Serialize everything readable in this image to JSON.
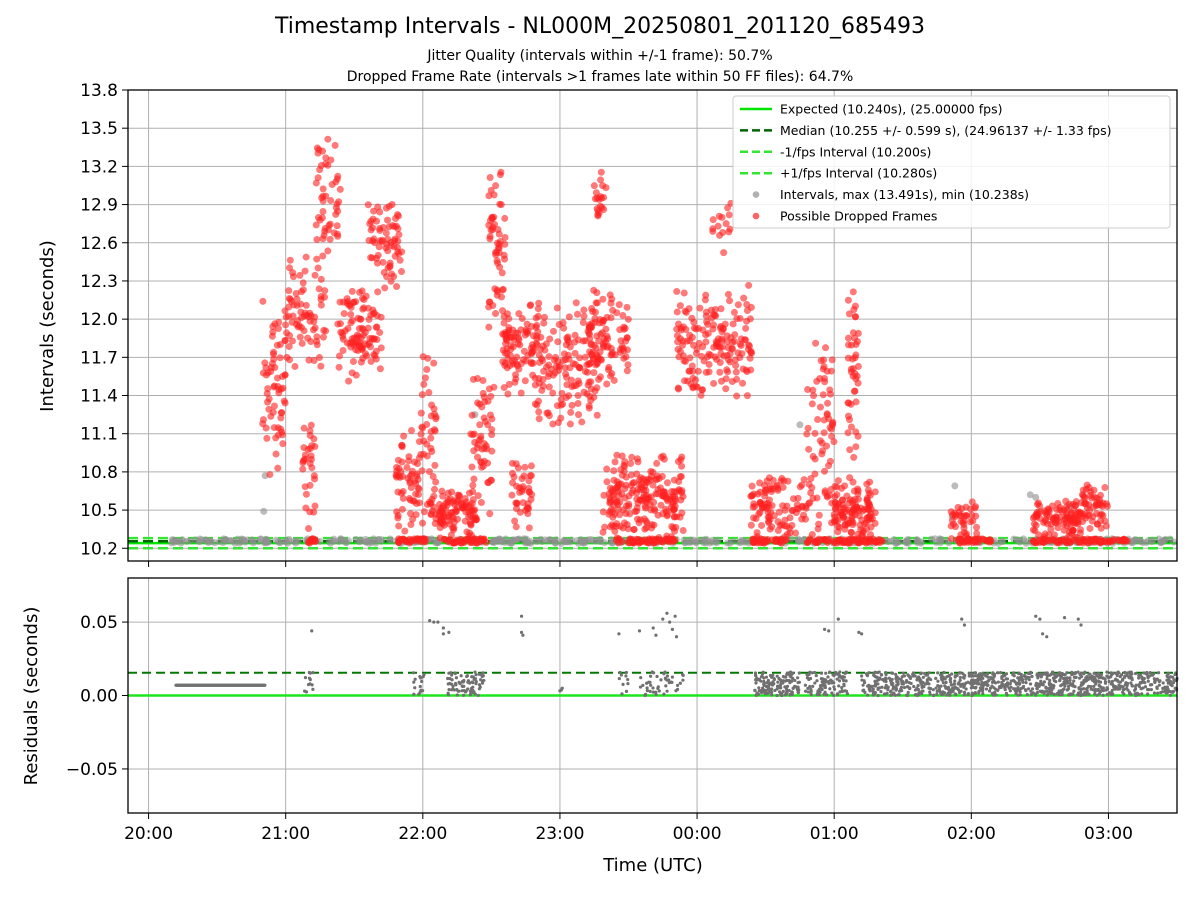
{
  "chart_data": [
    {
      "type": "scatter",
      "title": "Timestamp Intervals - NL000M_20250801_201120_685493",
      "subtitle_lines": [
        "Jitter Quality (intervals within +/-1 frame): 50.7%",
        "Dropped Frame Rate (intervals >1 frames late within 50 FF files): 64.7%"
      ],
      "xlabel": "",
      "ylabel": "Intervals (seconds)",
      "xlim_hours": [
        19.85,
        27.5
      ],
      "ylim": [
        10.1,
        13.8
      ],
      "yticks": [
        10.2,
        10.5,
        10.8,
        11.1,
        11.4,
        11.7,
        12.0,
        12.3,
        12.6,
        12.9,
        13.2,
        13.5,
        13.8
      ],
      "ytick_labels": [
        "10.2",
        "10.5",
        "10.8",
        "11.1",
        "11.4",
        "11.7",
        "12.0",
        "12.3",
        "12.6",
        "12.9",
        "13.2",
        "13.5",
        "13.8"
      ],
      "grid": true,
      "legend_position": "top-right",
      "reference_lines": {
        "expected": 10.24,
        "median": 10.255,
        "minus_interval": 10.2,
        "plus_interval": 10.28
      },
      "legend": [
        {
          "label": "Expected (10.240s), (25.00000 fps)",
          "style": "solid",
          "color": "#00e600"
        },
        {
          "label": "Median (10.255 +/- 0.599 s), (24.96137 +/- 1.33 fps)",
          "style": "dashed",
          "color": "#006400"
        },
        {
          "label": "-1/fps Interval (10.200s)",
          "style": "dashed",
          "color": "#32e632"
        },
        {
          "label": "+1/fps Interval (10.280s)",
          "style": "dashed",
          "color": "#32e632"
        },
        {
          "label": "Intervals, max (13.491s), min (10.238s)",
          "style": "marker",
          "color": "#909090"
        },
        {
          "label": "Possible Dropped Frames",
          "style": "marker",
          "color": "#ff2020"
        }
      ],
      "colors": {
        "expected": "#00e600",
        "median": "#006400",
        "interval": "#32e632",
        "normal_points": "#909090",
        "dropped_points": "#ff2020"
      },
      "dropped_clusters": [
        {
          "start": 20.83,
          "end": 21.0,
          "low": 10.75,
          "high": 12.2,
          "n": 65
        },
        {
          "start": 21.0,
          "end": 21.3,
          "low": 11.5,
          "high": 12.6,
          "n": 75
        },
        {
          "start": 21.12,
          "end": 21.22,
          "low": 10.25,
          "high": 11.3,
          "n": 30
        },
        {
          "start": 21.22,
          "end": 21.4,
          "low": 12.4,
          "high": 13.45,
          "n": 50
        },
        {
          "start": 21.38,
          "end": 21.7,
          "low": 11.5,
          "high": 12.3,
          "n": 100
        },
        {
          "start": 21.6,
          "end": 21.85,
          "low": 12.2,
          "high": 12.95,
          "n": 70
        },
        {
          "start": 21.8,
          "end": 21.98,
          "low": 10.25,
          "high": 11.2,
          "n": 60
        },
        {
          "start": 21.98,
          "end": 22.1,
          "low": 10.3,
          "high": 11.8,
          "n": 40
        },
        {
          "start": 22.05,
          "end": 22.4,
          "low": 10.25,
          "high": 10.7,
          "n": 110
        },
        {
          "start": 22.35,
          "end": 22.52,
          "low": 10.25,
          "high": 11.7,
          "n": 55
        },
        {
          "start": 22.48,
          "end": 22.6,
          "low": 11.8,
          "high": 13.3,
          "n": 55
        },
        {
          "start": 22.58,
          "end": 22.85,
          "low": 11.35,
          "high": 12.2,
          "n": 90
        },
        {
          "start": 22.65,
          "end": 22.8,
          "low": 10.25,
          "high": 11.0,
          "n": 40
        },
        {
          "start": 22.8,
          "end": 23.3,
          "low": 11.1,
          "high": 12.2,
          "n": 160
        },
        {
          "start": 23.2,
          "end": 23.5,
          "low": 11.4,
          "high": 12.3,
          "n": 80
        },
        {
          "start": 23.25,
          "end": 23.35,
          "low": 12.7,
          "high": 13.2,
          "n": 20
        },
        {
          "start": 23.3,
          "end": 23.9,
          "low": 10.25,
          "high": 10.95,
          "n": 220
        },
        {
          "start": 23.85,
          "end": 24.4,
          "low": 11.35,
          "high": 12.3,
          "n": 170
        },
        {
          "start": 24.1,
          "end": 24.25,
          "low": 12.5,
          "high": 12.95,
          "n": 15
        },
        {
          "start": 24.38,
          "end": 24.8,
          "low": 10.25,
          "high": 10.8,
          "n": 100
        },
        {
          "start": 24.8,
          "end": 25.0,
          "low": 10.25,
          "high": 11.9,
          "n": 70
        },
        {
          "start": 25.0,
          "end": 25.3,
          "low": 10.25,
          "high": 10.75,
          "n": 120
        },
        {
          "start": 25.1,
          "end": 25.18,
          "low": 10.6,
          "high": 12.4,
          "n": 45
        },
        {
          "start": 25.85,
          "end": 26.05,
          "low": 10.25,
          "high": 10.6,
          "n": 40
        },
        {
          "start": 26.45,
          "end": 26.8,
          "low": 10.25,
          "high": 10.6,
          "n": 110
        },
        {
          "start": 26.8,
          "end": 27.0,
          "low": 10.25,
          "high": 10.75,
          "n": 55
        }
      ],
      "dropped_baseline_segments": [
        {
          "start": 21.13,
          "end": 21.22,
          "n": 10
        },
        {
          "start": 21.82,
          "end": 22.02,
          "n": 30
        },
        {
          "start": 22.15,
          "end": 22.48,
          "n": 40
        },
        {
          "start": 23.4,
          "end": 23.85,
          "n": 60
        },
        {
          "start": 24.4,
          "end": 24.65,
          "n": 40
        },
        {
          "start": 24.8,
          "end": 25.35,
          "n": 70
        },
        {
          "start": 25.9,
          "end": 26.15,
          "n": 30
        },
        {
          "start": 26.45,
          "end": 27.15,
          "n": 80
        }
      ],
      "normal_points": [
        [
          20.2,
          10.26
        ],
        [
          20.3,
          10.26
        ],
        [
          20.45,
          10.26
        ],
        [
          20.6,
          10.26
        ],
        [
          20.7,
          10.26
        ],
        [
          20.85,
          10.77
        ],
        [
          20.84,
          10.49
        ],
        [
          22.38,
          11.25
        ],
        [
          24.75,
          11.17
        ],
        [
          25.88,
          10.69
        ],
        [
          25.86,
          10.45
        ],
        [
          26.43,
          10.62
        ],
        [
          26.47,
          10.6
        ],
        [
          26.72,
          10.53
        ]
      ],
      "normal_band": {
        "start": 20.15,
        "end": 27.5,
        "low": 10.238,
        "high": 10.275,
        "n": 500
      }
    },
    {
      "type": "scatter",
      "xlabel": "Time (UTC)",
      "ylabel": "Residuals (seconds)",
      "xlim_hours": [
        19.85,
        27.5
      ],
      "ylim": [
        -0.08,
        0.08
      ],
      "yticks": [
        -0.05,
        0.0,
        0.05
      ],
      "ytick_labels": [
        "−0.05",
        "0.00",
        "0.05"
      ],
      "xticks_hours": [
        20,
        21,
        22,
        23,
        24,
        25,
        26,
        27
      ],
      "xtick_labels": [
        "20:00",
        "21:00",
        "22:00",
        "23:00",
        "00:00",
        "01:00",
        "02:00",
        "03:00"
      ],
      "grid": true,
      "reference_lines": {
        "zero": 0.0,
        "median_residual": 0.0155
      },
      "colors": {
        "points": "#707070",
        "zero_line": "#1ee61e",
        "median_line": "#007800"
      },
      "flat_segment": {
        "start": 20.2,
        "end": 20.85,
        "value": 0.007
      },
      "scatter_clusters": [
        {
          "start": 21.13,
          "end": 21.2,
          "low": 0.0,
          "high": 0.016,
          "n": 12
        },
        {
          "start": 21.92,
          "end": 22.02,
          "low": 0.0,
          "high": 0.016,
          "n": 15
        },
        {
          "start": 22.18,
          "end": 22.45,
          "low": 0.0,
          "high": 0.016,
          "n": 80
        },
        {
          "start": 23.0,
          "end": 23.02,
          "low": 0.003,
          "high": 0.01,
          "n": 3
        },
        {
          "start": 23.43,
          "end": 23.5,
          "low": 0.0,
          "high": 0.016,
          "n": 10
        },
        {
          "start": 23.58,
          "end": 23.9,
          "low": 0.0,
          "high": 0.016,
          "n": 45
        },
        {
          "start": 24.42,
          "end": 24.75,
          "low": 0.0,
          "high": 0.016,
          "n": 140
        },
        {
          "start": 24.78,
          "end": 25.1,
          "low": 0.0,
          "high": 0.016,
          "n": 100
        },
        {
          "start": 25.2,
          "end": 27.5,
          "low": 0.0,
          "high": 0.016,
          "n": 900
        }
      ],
      "outlier_points": [
        [
          21.19,
          0.044
        ],
        [
          22.05,
          0.051
        ],
        [
          22.08,
          0.05
        ],
        [
          22.11,
          0.05
        ],
        [
          22.15,
          0.046
        ],
        [
          22.19,
          0.043
        ],
        [
          22.15,
          0.042
        ],
        [
          22.72,
          0.054
        ],
        [
          22.72,
          0.043
        ],
        [
          22.73,
          0.041
        ],
        [
          23.43,
          0.042
        ],
        [
          23.58,
          0.044
        ],
        [
          23.68,
          0.046
        ],
        [
          23.7,
          0.041
        ],
        [
          23.75,
          0.052
        ],
        [
          23.78,
          0.056
        ],
        [
          23.8,
          0.05
        ],
        [
          23.82,
          0.045
        ],
        [
          23.85,
          0.04
        ],
        [
          23.84,
          0.054
        ],
        [
          24.93,
          0.045
        ],
        [
          24.96,
          0.044
        ],
        [
          25.03,
          0.052
        ],
        [
          25.18,
          0.043
        ],
        [
          25.2,
          0.042
        ],
        [
          25.93,
          0.052
        ],
        [
          25.95,
          0.048
        ],
        [
          26.47,
          0.054
        ],
        [
          26.5,
          0.052
        ],
        [
          26.52,
          0.042
        ],
        [
          26.55,
          0.04
        ],
        [
          26.68,
          0.053
        ],
        [
          26.78,
          0.052
        ],
        [
          26.8,
          0.048
        ]
      ]
    }
  ]
}
